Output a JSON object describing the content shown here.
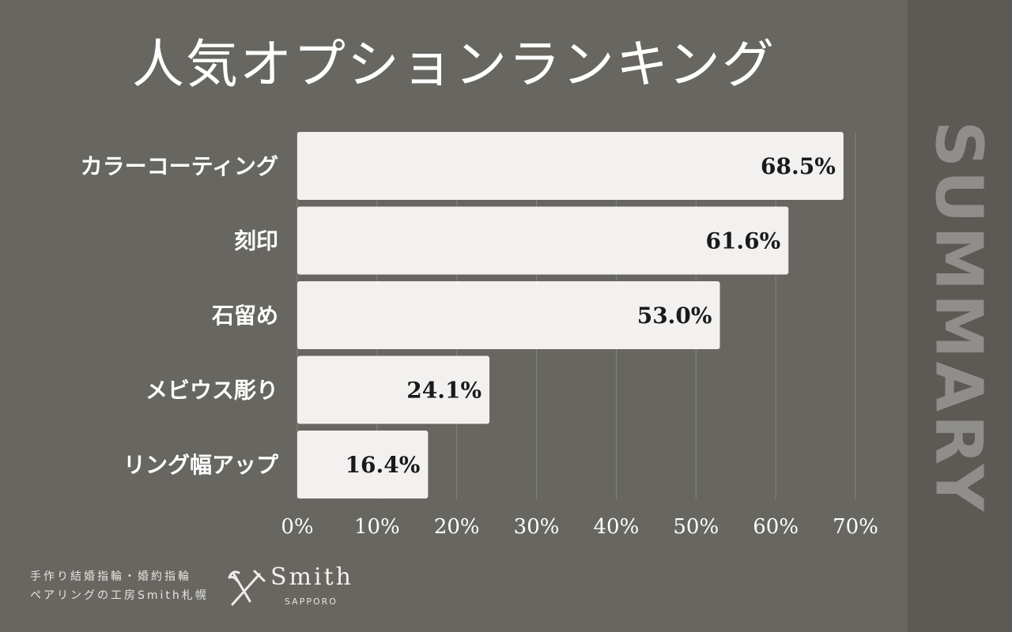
{
  "chart_data": {
    "type": "bar",
    "orientation": "horizontal",
    "title": "人気オプションランキング",
    "categories": [
      "カラーコーティング",
      "刻印",
      "石留め",
      "メビウス彫り",
      "リング幅アップ"
    ],
    "values": [
      68.5,
      61.6,
      53.0,
      24.1,
      16.4
    ],
    "value_labels": [
      "68.5%",
      "61.6%",
      "53.0%",
      "24.1%",
      "16.4%"
    ],
    "xlim": [
      0,
      70
    ],
    "x_ticks": [
      "0%",
      "10%",
      "20%",
      "30%",
      "40%",
      "50%",
      "60%",
      "70%"
    ],
    "grid": true,
    "bar_color": "#f3f1ef"
  },
  "sidebar": {
    "label": "SUMMARY"
  },
  "footer": {
    "line1": "手作り結婚指輪・婚約指輪",
    "line2": "ペアリングの工房Smith札幌",
    "logo_name": "Smith",
    "logo_sub": "SAPPORO"
  },
  "colors": {
    "background": "#676661",
    "sidebar": "#5c5a55",
    "summary_text": "#8f8e8a"
  }
}
